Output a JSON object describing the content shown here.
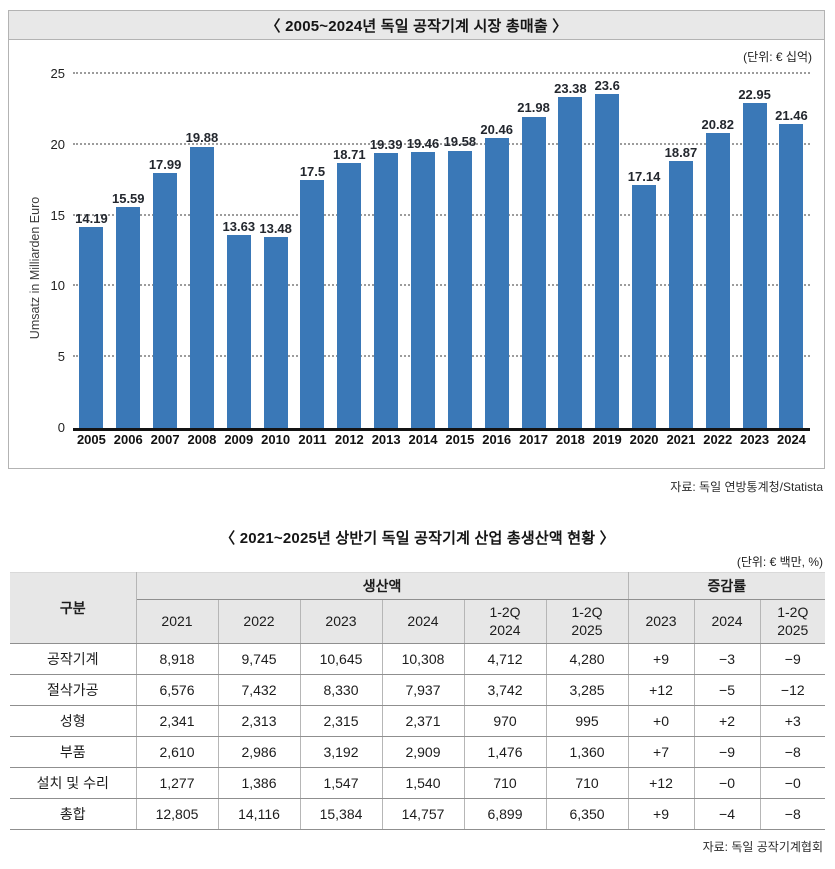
{
  "chart_data": {
    "type": "bar",
    "title": "〈 2005~2024년 독일 공작기계 시장 총매출 〉",
    "unit_label": "(단위: € 십억)",
    "source": "자료: 독일 연방통계청/Statista",
    "ylabel": "Umsatz in Milliarden Euro",
    "xlabel": "",
    "categories": [
      "2005",
      "2006",
      "2007",
      "2008",
      "2009",
      "2010",
      "2011",
      "2012",
      "2013",
      "2014",
      "2015",
      "2016",
      "2017",
      "2018",
      "2019",
      "2020",
      "2021",
      "2022",
      "2023",
      "2024"
    ],
    "values": [
      14.19,
      15.59,
      17.99,
      19.88,
      13.63,
      13.48,
      17.5,
      18.71,
      19.39,
      19.46,
      19.58,
      20.46,
      21.98,
      23.38,
      23.6,
      17.14,
      18.87,
      20.82,
      22.95,
      21.46
    ],
    "value_labels": [
      "14.19",
      "15.59",
      "17.99",
      "19.88",
      "13.63",
      "13.48",
      "17.5",
      "18.71",
      "19.39",
      "19.46",
      "19.58",
      "20.46",
      "21.98",
      "23.38",
      "23.6",
      "17.14",
      "18.87",
      "20.82",
      "22.95",
      "21.46"
    ],
    "ylim": [
      0,
      25
    ],
    "yticks": [
      0,
      5,
      10,
      15,
      20,
      25
    ],
    "grid": "horizontal-dotted",
    "legend": "none",
    "bar_color": "#3a78b7"
  },
  "table": {
    "title": "〈 2021~2025년 상반기 독일 공작기계 산업 총생산액 현황 〉",
    "unit_label": "(단위: € 백만, %)",
    "source": "자료: 독일 공작기계협회",
    "corner_header": "구분",
    "groups": [
      {
        "label": "생산액",
        "span": 6
      },
      {
        "label": "증감률",
        "span": 3
      }
    ],
    "columns": [
      "2021",
      "2022",
      "2023",
      "2024",
      "1-2Q\n2024",
      "1-2Q\n2025",
      "2023",
      "2024",
      "1-2Q\n2025"
    ],
    "rows": [
      {
        "label": "공작기계",
        "values": [
          "8,918",
          "9,745",
          "10,645",
          "10,308",
          "4,712",
          "4,280",
          "+9",
          "−3",
          "−9"
        ]
      },
      {
        "label": "절삭가공",
        "values": [
          "6,576",
          "7,432",
          "8,330",
          "7,937",
          "3,742",
          "3,285",
          "+12",
          "−5",
          "−12"
        ]
      },
      {
        "label": "성형",
        "values": [
          "2,341",
          "2,313",
          "2,315",
          "2,371",
          "970",
          "995",
          "+0",
          "+2",
          "+3"
        ]
      },
      {
        "label": "부품",
        "values": [
          "2,610",
          "2,986",
          "3,192",
          "2,909",
          "1,476",
          "1,360",
          "+7",
          "−9",
          "−8"
        ]
      },
      {
        "label": "설치 및 수리",
        "values": [
          "1,277",
          "1,386",
          "1,547",
          "1,540",
          "710",
          "710",
          "+12",
          "−0",
          "−0"
        ]
      },
      {
        "label": "총합",
        "values": [
          "12,805",
          "14,116",
          "15,384",
          "14,757",
          "6,899",
          "6,350",
          "+9",
          "−4",
          "−8"
        ]
      }
    ]
  }
}
